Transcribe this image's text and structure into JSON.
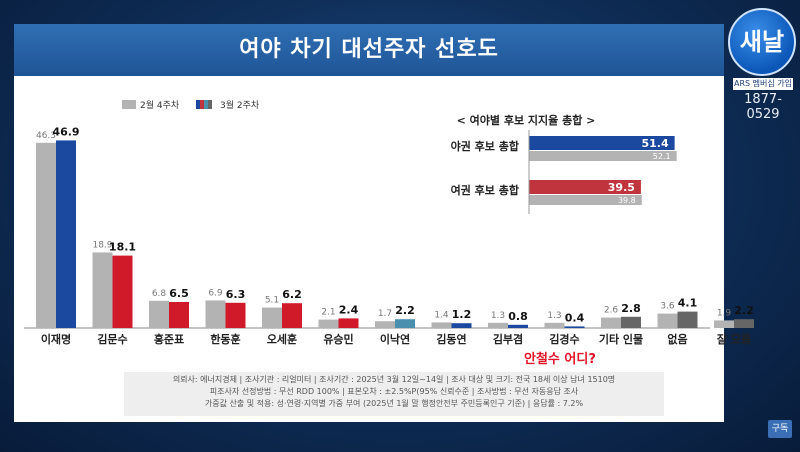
{
  "header": {
    "title": "여야 차기 대선주자 선호도"
  },
  "channel": {
    "logo_text": "새날",
    "ars_label": "ARS 멤버십 가입",
    "ars_number": "1877-0529",
    "subscribe_label": "구독"
  },
  "colors": {
    "previous": "#b3b3b3",
    "title_bar": "#1f5597"
  },
  "chart_data": [
    {
      "type": "bar",
      "legend": [
        "2월 4주차",
        "3월 2주차"
      ],
      "legend_placement": "top-left",
      "categories": [
        "이재명",
        "김문수",
        "홍준표",
        "한동훈",
        "오세훈",
        "유승민",
        "이낙연",
        "김동연",
        "김부겸",
        "김경수",
        "기타 인물",
        "없음",
        "잘 모름"
      ],
      "series": [
        {
          "name": "2월 4주차",
          "values": [
            46.3,
            18.9,
            6.8,
            6.9,
            5.1,
            2.1,
            1.7,
            1.4,
            1.3,
            1.3,
            2.6,
            3.6,
            1.9
          ]
        },
        {
          "name": "3월 2주차",
          "values": [
            46.9,
            18.1,
            6.5,
            6.3,
            6.2,
            2.4,
            2.2,
            1.2,
            0.8,
            0.4,
            2.8,
            4.1,
            2.2
          ],
          "colors": [
            "#1b49a0",
            "#d01a2a",
            "#d01a2a",
            "#d01a2a",
            "#d01a2a",
            "#d01a2a",
            "#4a8fae",
            "#1b49a0",
            "#1b49a0",
            "#1b49a0",
            "#666666",
            "#666666",
            "#666666"
          ]
        }
      ],
      "ylim": [
        0,
        50
      ],
      "grid": false
    },
    {
      "type": "bar",
      "orientation": "horizontal",
      "title": "< 여야별 후보 지지율 총합 >",
      "categories": [
        "야권 후보 총합",
        "여권 후보 총합"
      ],
      "series": [
        {
          "name": "3월 2주차",
          "values": [
            51.4,
            39.5
          ],
          "colors": [
            "#1b49a0",
            "#c0343d"
          ]
        },
        {
          "name": "2월 4주차",
          "values": [
            52.1,
            39.8
          ]
        }
      ],
      "xlim": [
        0,
        60
      ]
    }
  ],
  "annotation": {
    "text": "안철수 어디?"
  },
  "source": {
    "lines": [
      "의뢰사: 에너지경제 | 조사기관 : 리얼미터  |  조사기간 : 2025년 3월 12일~14일 | 조사 대상 및 크기: 전국 18세 이상 남녀 1510명",
      "피조사자 선정방법 : 무선 RDD 100% | 표본오차 : ±2.5%P(95% 신뢰수준 | 조사방법 : 무선 자동응답 조사",
      "가중값 산출 및 적용: 성·연령·지역별 가중 부여 (2025년 1월 말 행정안전부 주민등록인구 기준) | 응답률 : 7.2%"
    ]
  }
}
